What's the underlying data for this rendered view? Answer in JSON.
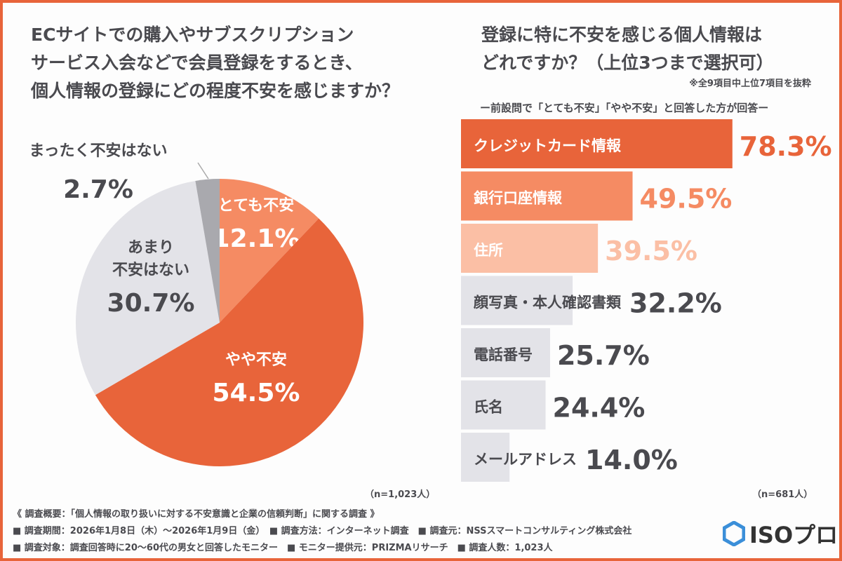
{
  "chart_data": [
    {
      "type": "pie",
      "title": "ECサイトでの購入やサブスクリプション\nサービス入会などで会員登録をするとき、\n個人情報の登録にどの程度不安を感じますか？",
      "slices": [
        {
          "label": "とても不安",
          "value": 12.1,
          "display": "12.1%",
          "color": "#F58B63"
        },
        {
          "label": "やや不安",
          "value": 54.5,
          "display": "54.5%",
          "color": "#E8643A"
        },
        {
          "label": "あまり\n不安はない",
          "value": 30.7,
          "display": "30.7%",
          "color": "#E3E3E8"
        },
        {
          "label": "まったく不安はない",
          "value": 2.7,
          "display": "2.7%",
          "color": "#A9A9AE"
        }
      ],
      "sample": "（n=1,023人）"
    },
    {
      "type": "bar",
      "orientation": "horizontal",
      "title": "登録に特に不安を感じる個人情報は\nどれですか？（上位3つまで選択可）",
      "note": "※全9項目中上位7項目を抜粋",
      "subtitle": "ー前設問で「とても不安」「やや不安」と回答した方が回答ー",
      "categories": [
        "クレジットカード情報",
        "銀行口座情報",
        "住所",
        "顔写真・本人確認書類",
        "電話番号",
        "氏名",
        "メールアドレス"
      ],
      "values": [
        78.3,
        49.5,
        39.5,
        32.2,
        25.7,
        24.4,
        14.0
      ],
      "labels": [
        "78.3%",
        "49.5%",
        "39.5%",
        "32.2%",
        "25.7%",
        "24.4%",
        "14.0%"
      ],
      "colors": [
        "#E8643A",
        "#F58B63",
        "#FBBFA5",
        "#E3E3E8",
        "#E3E3E8",
        "#E3E3E8",
        "#E3E3E8"
      ],
      "label_colors": [
        "#E8643A",
        "#F58B63",
        "#FBBFA5",
        "#4a4a4f",
        "#4a4a4f",
        "#4a4a4f",
        "#4a4a4f"
      ],
      "sample": "（n=681人）"
    }
  ],
  "footer": {
    "lines": [
      "《 調査概要：「個人情報の取り扱いに対する不安意識と企業の信頼判断」に関する調査 》",
      "■ 調査期間：2026年1月8日（木）〜2026年1月9日（金）　■ 調査方法：インターネット調査　■ 調査元：NSSスマートコンサルティング株式会社",
      "■ 調査対象：調査回答時に20〜60代の男女と回答したモニター　■ モニター提供元：PRIZMAリサーチ　■ 調査人数：1,023人"
    ]
  },
  "logo": {
    "text": "ISOプロ",
    "color": "#3b8fd9"
  }
}
